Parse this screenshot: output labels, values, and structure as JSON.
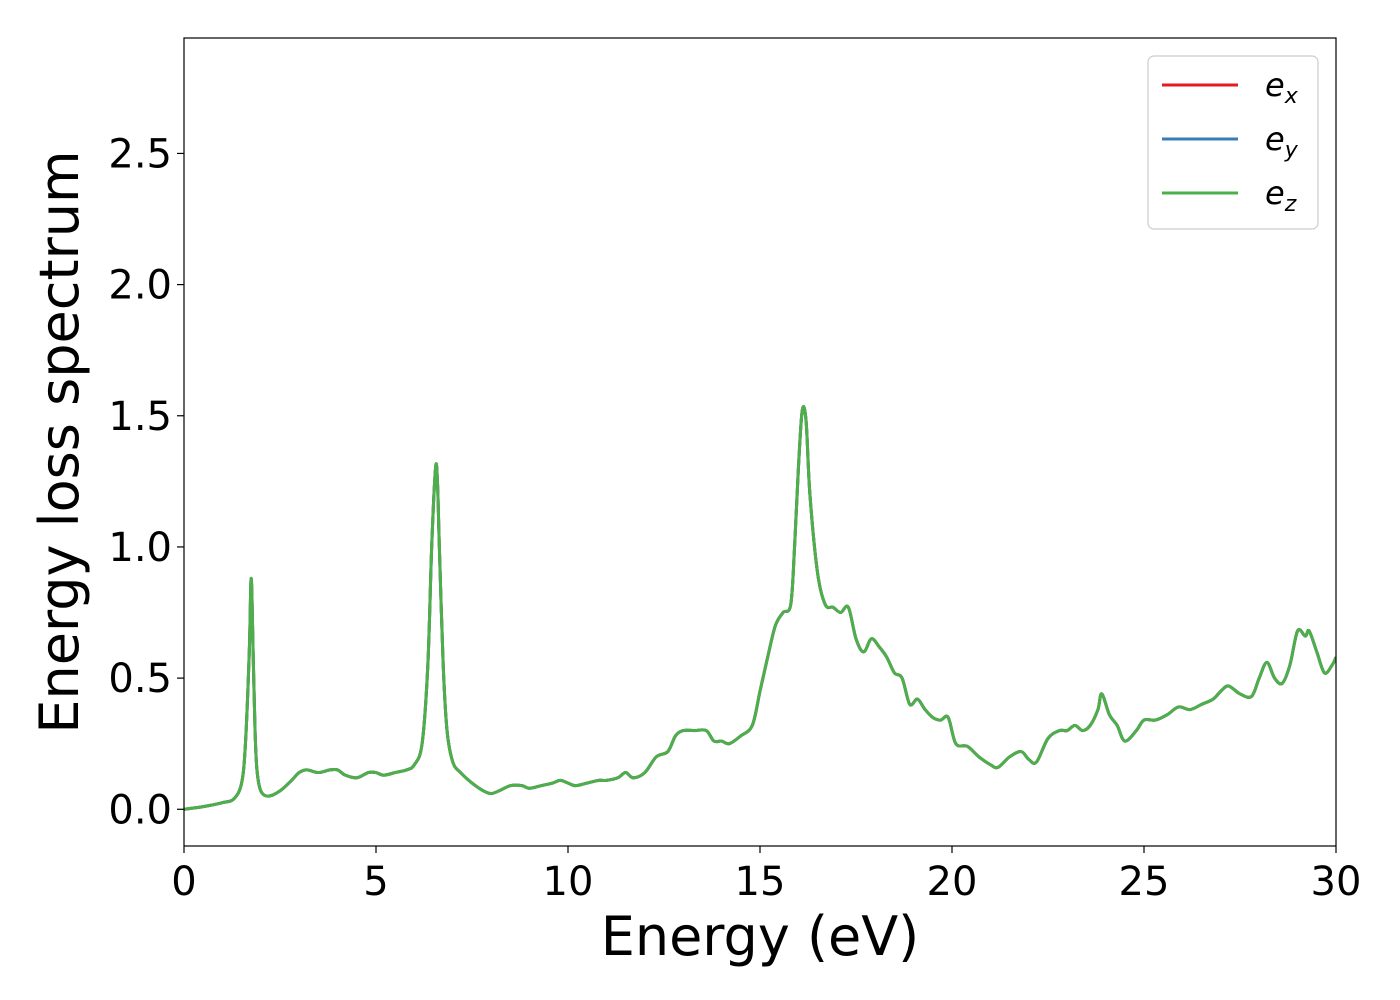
{
  "chart_data": {
    "type": "line",
    "title": "",
    "xlabel": "Energy (eV)",
    "ylabel": "Energy loss spectrum",
    "xlim": [
      0,
      30
    ],
    "ylim": [
      -0.14,
      2.94
    ],
    "xticks": [
      0,
      5,
      10,
      15,
      20,
      25,
      30
    ],
    "xtick_labels": [
      "0",
      "5",
      "10",
      "15",
      "20",
      "25",
      "30"
    ],
    "yticks": [
      0.0,
      0.5,
      1.0,
      1.5,
      2.0,
      2.5
    ],
    "ytick_labels": [
      "0.0",
      "0.5",
      "1.0",
      "1.5",
      "2.0",
      "2.5"
    ],
    "grid": false,
    "legend_position": "top-right",
    "legend": [
      {
        "base": "e",
        "sub": "x",
        "color": "#e41a1c"
      },
      {
        "base": "e",
        "sub": "y",
        "color": "#377eb8"
      },
      {
        "base": "e",
        "sub": "z",
        "color": "#4daf4a"
      }
    ],
    "series": [
      {
        "name": "e_x",
        "color": "#e41a1c",
        "x": [
          0,
          0.5,
          1.0,
          1.3,
          1.5,
          1.6,
          1.7,
          1.75,
          1.8,
          1.85,
          1.9,
          2.0,
          2.2,
          2.5,
          2.8,
          3.0,
          3.2,
          3.5,
          3.8,
          4.0,
          4.2,
          4.5,
          4.8,
          5.0,
          5.2,
          5.5,
          5.8,
          6.0,
          6.2,
          6.35,
          6.45,
          6.55,
          6.6,
          6.65,
          6.75,
          6.85,
          7.0,
          7.2,
          7.5,
          7.8,
          8.0,
          8.2,
          8.5,
          8.8,
          9.0,
          9.3,
          9.6,
          9.8,
          10.0,
          10.2,
          10.5,
          10.8,
          11.0,
          11.3,
          11.5,
          11.7,
          12.0,
          12.3,
          12.6,
          12.8,
          13.0,
          13.3,
          13.6,
          13.8,
          14.0,
          14.2,
          14.5,
          14.8,
          15.0,
          15.2,
          15.4,
          15.6,
          15.8,
          15.9,
          16.0,
          16.1,
          16.2,
          16.3,
          16.5,
          16.7,
          16.9,
          17.1,
          17.3,
          17.5,
          17.7,
          17.9,
          18.1,
          18.3,
          18.5,
          18.7,
          18.9,
          19.1,
          19.3,
          19.5,
          19.7,
          19.9,
          20.1,
          20.4,
          20.7,
          21.0,
          21.2,
          21.5,
          21.8,
          22.0,
          22.2,
          22.5,
          22.8,
          23.0,
          23.2,
          23.4,
          23.6,
          23.8,
          23.9,
          24.1,
          24.3,
          24.5,
          24.8,
          25.0,
          25.3,
          25.6,
          25.9,
          26.2,
          26.5,
          26.8,
          27.0,
          27.2,
          27.5,
          27.8,
          28.0,
          28.2,
          28.4,
          28.6,
          28.8,
          29.0,
          29.2,
          29.3,
          29.5,
          29.7,
          29.9,
          30.0
        ],
        "y": [
          0.0,
          0.01,
          0.025,
          0.04,
          0.1,
          0.25,
          0.6,
          0.88,
          0.6,
          0.3,
          0.15,
          0.07,
          0.05,
          0.07,
          0.11,
          0.14,
          0.15,
          0.14,
          0.15,
          0.15,
          0.13,
          0.12,
          0.14,
          0.14,
          0.13,
          0.14,
          0.15,
          0.17,
          0.25,
          0.55,
          1.0,
          1.3,
          1.25,
          1.0,
          0.55,
          0.3,
          0.18,
          0.14,
          0.1,
          0.07,
          0.06,
          0.07,
          0.09,
          0.09,
          0.08,
          0.09,
          0.1,
          0.11,
          0.1,
          0.09,
          0.1,
          0.11,
          0.11,
          0.12,
          0.14,
          0.12,
          0.14,
          0.2,
          0.22,
          0.28,
          0.3,
          0.3,
          0.3,
          0.26,
          0.26,
          0.25,
          0.28,
          0.32,
          0.45,
          0.58,
          0.7,
          0.75,
          0.78,
          1.0,
          1.3,
          1.52,
          1.48,
          1.2,
          0.9,
          0.78,
          0.77,
          0.75,
          0.77,
          0.65,
          0.6,
          0.65,
          0.62,
          0.58,
          0.52,
          0.5,
          0.4,
          0.42,
          0.38,
          0.35,
          0.34,
          0.35,
          0.25,
          0.24,
          0.2,
          0.17,
          0.16,
          0.2,
          0.22,
          0.19,
          0.18,
          0.27,
          0.3,
          0.3,
          0.32,
          0.3,
          0.32,
          0.38,
          0.44,
          0.36,
          0.32,
          0.26,
          0.3,
          0.34,
          0.34,
          0.36,
          0.39,
          0.38,
          0.4,
          0.42,
          0.45,
          0.47,
          0.44,
          0.43,
          0.5,
          0.56,
          0.5,
          0.48,
          0.55,
          0.68,
          0.66,
          0.68,
          0.6,
          0.52,
          0.55,
          0.58
        ]
      },
      {
        "name": "e_y",
        "color": "#377eb8",
        "x": [
          0,
          0.5,
          1.0,
          1.3,
          1.5,
          1.6,
          1.7,
          1.75,
          1.8,
          1.85,
          1.9,
          2.0,
          2.2,
          2.5,
          2.8,
          3.0,
          3.2,
          3.5,
          3.8,
          4.0,
          4.2,
          4.5,
          4.8,
          5.0,
          5.2,
          5.5,
          5.8,
          6.0,
          6.2,
          6.35,
          6.45,
          6.55,
          6.6,
          6.65,
          6.75,
          6.85,
          7.0,
          7.2,
          7.5,
          7.8,
          8.0,
          8.2,
          8.5,
          8.8,
          9.0,
          9.3,
          9.6,
          9.8,
          10.0,
          10.2,
          10.5,
          10.8,
          11.0,
          11.3,
          11.5,
          11.7,
          12.0,
          12.3,
          12.6,
          12.8,
          13.0,
          13.3,
          13.6,
          13.8,
          14.0,
          14.2,
          14.5,
          14.8,
          15.0,
          15.2,
          15.4,
          15.6,
          15.8,
          15.9,
          16.0,
          16.1,
          16.2,
          16.3,
          16.5,
          16.7,
          16.9,
          17.1,
          17.3,
          17.5,
          17.7,
          17.9,
          18.1,
          18.3,
          18.5,
          18.7,
          18.9,
          19.1,
          19.3,
          19.5,
          19.7,
          19.9,
          20.1,
          20.4,
          20.7,
          21.0,
          21.2,
          21.5,
          21.8,
          22.0,
          22.2,
          22.5,
          22.8,
          23.0,
          23.2,
          23.4,
          23.6,
          23.8,
          23.9,
          24.1,
          24.3,
          24.5,
          24.8,
          25.0,
          25.3,
          25.6,
          25.9,
          26.2,
          26.5,
          26.8,
          27.0,
          27.2,
          27.5,
          27.8,
          28.0,
          28.2,
          28.4,
          28.6,
          28.8,
          29.0,
          29.2,
          29.3,
          29.5,
          29.7,
          29.9,
          30.0
        ],
        "y": [
          0.0,
          0.01,
          0.025,
          0.04,
          0.1,
          0.25,
          0.6,
          0.88,
          0.6,
          0.3,
          0.15,
          0.07,
          0.05,
          0.07,
          0.11,
          0.14,
          0.15,
          0.14,
          0.15,
          0.15,
          0.13,
          0.12,
          0.14,
          0.14,
          0.13,
          0.14,
          0.15,
          0.17,
          0.25,
          0.55,
          1.0,
          1.3,
          1.25,
          1.0,
          0.55,
          0.3,
          0.18,
          0.14,
          0.1,
          0.07,
          0.06,
          0.07,
          0.09,
          0.09,
          0.08,
          0.09,
          0.1,
          0.11,
          0.1,
          0.09,
          0.1,
          0.11,
          0.11,
          0.12,
          0.14,
          0.12,
          0.14,
          0.2,
          0.22,
          0.28,
          0.3,
          0.3,
          0.3,
          0.26,
          0.26,
          0.25,
          0.28,
          0.32,
          0.45,
          0.58,
          0.7,
          0.75,
          0.78,
          1.0,
          1.3,
          1.52,
          1.48,
          1.2,
          0.9,
          0.78,
          0.77,
          0.75,
          0.77,
          0.65,
          0.6,
          0.65,
          0.62,
          0.58,
          0.52,
          0.5,
          0.4,
          0.42,
          0.38,
          0.35,
          0.34,
          0.35,
          0.25,
          0.24,
          0.2,
          0.17,
          0.16,
          0.2,
          0.22,
          0.19,
          0.18,
          0.27,
          0.3,
          0.3,
          0.32,
          0.3,
          0.32,
          0.38,
          0.44,
          0.36,
          0.32,
          0.26,
          0.3,
          0.34,
          0.34,
          0.36,
          0.39,
          0.38,
          0.4,
          0.42,
          0.45,
          0.47,
          0.44,
          0.43,
          0.5,
          0.56,
          0.5,
          0.48,
          0.55,
          0.68,
          0.66,
          0.68,
          0.6,
          0.52,
          0.55,
          0.58
        ]
      },
      {
        "name": "e_z",
        "color": "#4daf4a",
        "x": [
          0,
          0.5,
          1.0,
          1.3,
          1.5,
          1.6,
          1.7,
          1.75,
          1.8,
          1.85,
          1.9,
          2.0,
          2.2,
          2.5,
          2.8,
          3.0,
          3.2,
          3.5,
          3.8,
          4.0,
          4.2,
          4.5,
          4.8,
          5.0,
          5.2,
          5.5,
          5.8,
          6.0,
          6.2,
          6.35,
          6.45,
          6.55,
          6.6,
          6.65,
          6.75,
          6.85,
          7.0,
          7.2,
          7.5,
          7.8,
          8.0,
          8.2,
          8.5,
          8.8,
          9.0,
          9.3,
          9.6,
          9.8,
          10.0,
          10.2,
          10.5,
          10.8,
          11.0,
          11.3,
          11.5,
          11.7,
          12.0,
          12.3,
          12.6,
          12.8,
          13.0,
          13.3,
          13.6,
          13.8,
          14.0,
          14.2,
          14.5,
          14.8,
          15.0,
          15.2,
          15.4,
          15.6,
          15.8,
          15.9,
          16.0,
          16.1,
          16.2,
          16.3,
          16.5,
          16.7,
          16.9,
          17.1,
          17.3,
          17.5,
          17.7,
          17.9,
          18.1,
          18.3,
          18.5,
          18.7,
          18.9,
          19.1,
          19.3,
          19.5,
          19.7,
          19.9,
          20.1,
          20.4,
          20.7,
          21.0,
          21.2,
          21.5,
          21.8,
          22.0,
          22.2,
          22.5,
          22.8,
          23.0,
          23.2,
          23.4,
          23.6,
          23.8,
          23.9,
          24.1,
          24.3,
          24.5,
          24.8,
          25.0,
          25.3,
          25.6,
          25.9,
          26.2,
          26.5,
          26.8,
          27.0,
          27.2,
          27.5,
          27.8,
          28.0,
          28.2,
          28.4,
          28.6,
          28.8,
          29.0,
          29.2,
          29.3,
          29.5,
          29.7,
          29.9,
          30.0
        ],
        "y": [
          0.0,
          0.01,
          0.025,
          0.04,
          0.1,
          0.25,
          0.6,
          0.88,
          0.6,
          0.3,
          0.15,
          0.07,
          0.05,
          0.07,
          0.11,
          0.14,
          0.15,
          0.14,
          0.15,
          0.15,
          0.13,
          0.12,
          0.14,
          0.14,
          0.13,
          0.14,
          0.15,
          0.17,
          0.25,
          0.55,
          1.0,
          1.3,
          1.25,
          1.0,
          0.55,
          0.3,
          0.18,
          0.14,
          0.1,
          0.07,
          0.06,
          0.07,
          0.09,
          0.09,
          0.08,
          0.09,
          0.1,
          0.11,
          0.1,
          0.09,
          0.1,
          0.11,
          0.11,
          0.12,
          0.14,
          0.12,
          0.14,
          0.2,
          0.22,
          0.28,
          0.3,
          0.3,
          0.3,
          0.26,
          0.26,
          0.25,
          0.28,
          0.32,
          0.45,
          0.58,
          0.7,
          0.75,
          0.78,
          1.0,
          1.3,
          1.52,
          1.48,
          1.2,
          0.9,
          0.78,
          0.77,
          0.75,
          0.77,
          0.65,
          0.6,
          0.65,
          0.62,
          0.58,
          0.52,
          0.5,
          0.4,
          0.42,
          0.38,
          0.35,
          0.34,
          0.35,
          0.25,
          0.24,
          0.2,
          0.17,
          0.16,
          0.2,
          0.22,
          0.19,
          0.18,
          0.27,
          0.3,
          0.3,
          0.32,
          0.3,
          0.32,
          0.38,
          0.44,
          0.36,
          0.32,
          0.26,
          0.3,
          0.34,
          0.34,
          0.36,
          0.39,
          0.38,
          0.4,
          0.42,
          0.45,
          0.47,
          0.44,
          0.43,
          0.5,
          0.56,
          0.5,
          0.48,
          0.55,
          0.68,
          0.66,
          0.68,
          0.6,
          0.52,
          0.55,
          0.58
        ]
      }
    ]
  }
}
